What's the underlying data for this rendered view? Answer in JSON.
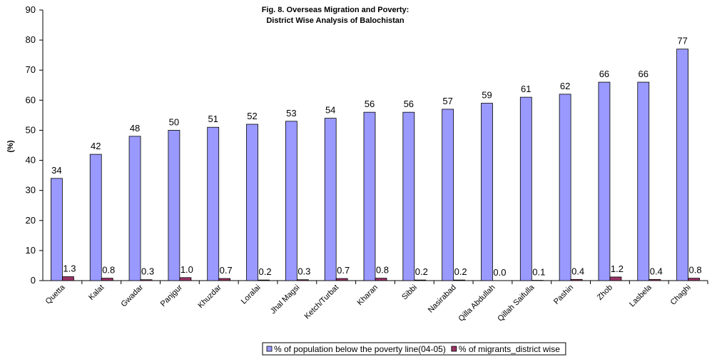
{
  "chart_data": {
    "type": "bar",
    "title": "Fig. 8. Overseas Migration and Poverty:",
    "subtitle": "District Wise Analysis of Balochistan",
    "y_label": "(%)",
    "categories": [
      "Quetta",
      "Kalat",
      "Gwadar",
      "Panjgur",
      "Khuzdar",
      "Loralai",
      "Jhal Magsi",
      "Ketch/Turbat",
      "Kharan",
      "Sibbi",
      "Nasirabad",
      "Qilla Abdullah",
      "Qillah Saifulla",
      "Pashin",
      "Zhob",
      "Lasbela",
      "Chaghi"
    ],
    "series": [
      {
        "name": "% of population below the poverty line(04-05)",
        "color": "#9999ff",
        "values": [
          34,
          42,
          48,
          50,
          51,
          52,
          53,
          54,
          56,
          56,
          57,
          59,
          61,
          62,
          66,
          66,
          77
        ]
      },
      {
        "name": "% of migrants_district wise",
        "color": "#993366",
        "values": [
          1.3,
          0.8,
          0.3,
          1.0,
          0.7,
          0.2,
          0.3,
          0.7,
          0.8,
          0.2,
          0.2,
          0.0,
          0.1,
          0.4,
          1.2,
          0.4,
          0.8
        ],
        "value_labels": [
          "1.3",
          "0.8",
          "0.3",
          "1.0",
          "0.7",
          "0.2",
          "0.3",
          "0.7",
          "0.8",
          "0.2",
          "0.2",
          "0.0",
          "0.1",
          "0.4",
          "1.2",
          "0.4",
          "0.8"
        ]
      }
    ],
    "ylim": [
      0,
      90
    ],
    "yticks": [
      0,
      10,
      20,
      30,
      40,
      50,
      60,
      70,
      80,
      90
    ],
    "grid": false,
    "legend": "bottom"
  }
}
